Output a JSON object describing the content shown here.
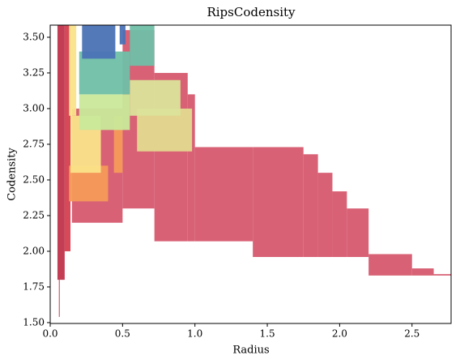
{
  "chart_data": {
    "type": "rects",
    "title": "RipsCodensity",
    "x_label": "Radius",
    "y_label": "Codensity",
    "xlim": [
      0,
      2.77
    ],
    "ylim": [
      1.494,
      3.585
    ],
    "xticks": [
      {
        "value": 0,
        "label": "0.0"
      },
      {
        "value": 0.5,
        "label": "0.5"
      },
      {
        "value": 1,
        "label": "1.0"
      },
      {
        "value": 1.5,
        "label": "1.5"
      },
      {
        "value": 2,
        "label": "2.0"
      },
      {
        "value": 2.5,
        "label": "2.5"
      }
    ],
    "yticks": [
      {
        "value": 1.5,
        "label": "1.50"
      },
      {
        "value": 1.75,
        "label": "1.75"
      },
      {
        "value": 2,
        "label": "2.00"
      },
      {
        "value": 2.25,
        "label": "2.25"
      },
      {
        "value": 2.5,
        "label": "2.50"
      },
      {
        "value": 2.75,
        "label": "2.75"
      },
      {
        "value": 3,
        "label": "3.00"
      },
      {
        "value": 3.25,
        "label": "3.25"
      },
      {
        "value": 3.5,
        "label": "3.50"
      }
    ],
    "series": [
      {
        "color": "#d6596e",
        "rects": [
          [
            0.15,
            0.5,
            2.2,
            3.0
          ],
          [
            0.5,
            0.72,
            2.3,
            3.55
          ],
          [
            0.72,
            0.95,
            2.07,
            3.25
          ],
          [
            0.95,
            1.0,
            2.07,
            3.1
          ],
          [
            1.0,
            1.4,
            2.07,
            2.73
          ],
          [
            1.4,
            1.75,
            1.96,
            2.73
          ],
          [
            1.75,
            1.85,
            1.96,
            2.68
          ],
          [
            1.85,
            1.95,
            1.96,
            2.55
          ],
          [
            1.95,
            2.05,
            1.96,
            2.42
          ],
          [
            2.05,
            2.2,
            1.96,
            2.3
          ],
          [
            2.2,
            2.5,
            1.83,
            1.98
          ],
          [
            2.5,
            2.65,
            1.83,
            1.88
          ],
          [
            2.65,
            2.78,
            1.83,
            1.84
          ]
        ]
      },
      {
        "color": "#c0334b",
        "rects": [
          [
            0.05,
            0.1,
            1.8,
            3.585
          ],
          [
            0.06,
            0.065,
            1.54,
            1.8
          ]
        ]
      },
      {
        "color": "#d53e4f",
        "rects": [
          [
            0.1,
            0.14,
            2.0,
            3.585
          ]
        ]
      },
      {
        "color": "#f59a5a",
        "rects": [
          [
            0.13,
            0.4,
            2.35,
            2.6
          ],
          [
            0.44,
            0.5,
            2.55,
            2.95
          ]
        ]
      },
      {
        "color": "#fbe38a",
        "rects": [
          [
            0.14,
            0.35,
            2.55,
            2.95
          ],
          [
            0.13,
            0.18,
            2.95,
            3.585
          ]
        ]
      },
      {
        "color": "#e3d98f",
        "rects": [
          [
            0.6,
            0.98,
            2.7,
            3.0
          ]
        ]
      },
      {
        "color": "#dbe39a",
        "rects": [
          [
            0.55,
            0.9,
            2.95,
            3.2
          ]
        ]
      },
      {
        "color": "#c9e89a",
        "rects": [
          [
            0.2,
            0.55,
            2.85,
            3.1
          ]
        ]
      },
      {
        "color": "#6fbfa6",
        "rects": [
          [
            0.2,
            0.55,
            3.1,
            3.4
          ],
          [
            0.55,
            0.72,
            3.3,
            3.585
          ]
        ]
      },
      {
        "color": "#4a72b5",
        "rects": [
          [
            0.22,
            0.45,
            3.35,
            3.585
          ],
          [
            0.48,
            0.52,
            3.45,
            3.585
          ]
        ]
      }
    ]
  }
}
